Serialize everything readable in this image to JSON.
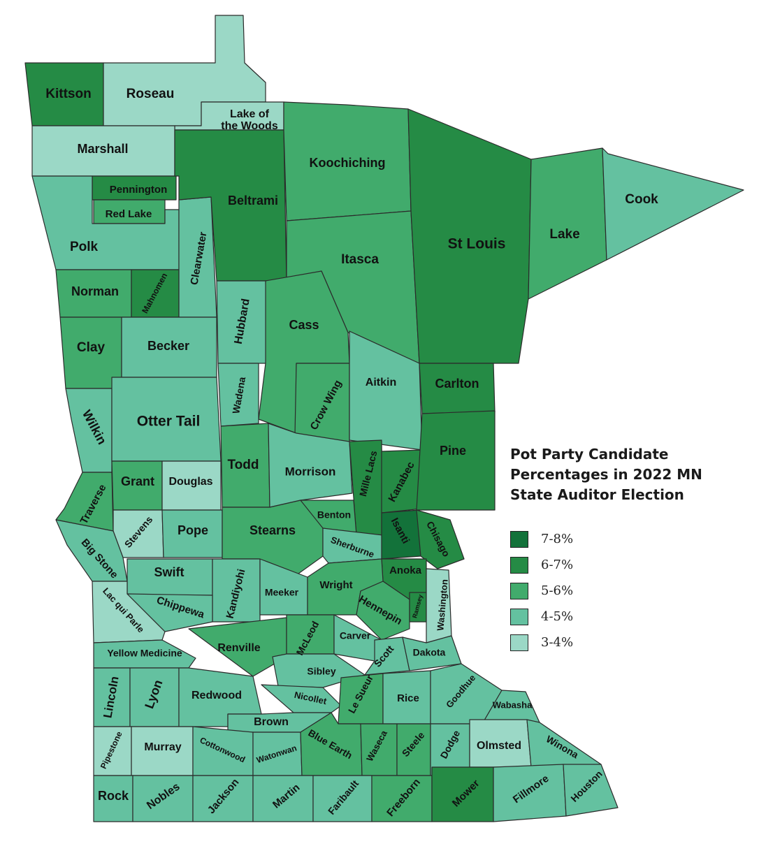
{
  "colors": {
    "7-8%": "#13723a",
    "6-7%": "#258b45",
    "5-6%": "#41ab6c",
    "4-5%": "#64c1a0",
    "3-4%": "#9bd8c6"
  },
  "legend": {
    "title": "Pot Party Candidate Percentages in 2022 MN State Auditor Election",
    "items": [
      {
        "label": "7-8%",
        "color": "#13723a"
      },
      {
        "label": "6-7%",
        "color": "#258b45"
      },
      {
        "label": "5-6%",
        "color": "#41ab6c"
      },
      {
        "label": "4-5%",
        "color": "#64c1a0"
      },
      {
        "label": "3-4%",
        "color": "#9bd8c6"
      }
    ]
  },
  "counties": [
    {
      "name": "Kittson",
      "range": "6-7%"
    },
    {
      "name": "Roseau",
      "range": "3-4%"
    },
    {
      "name": "Lake of the Woods",
      "range": "3-4%"
    },
    {
      "name": "Marshall",
      "range": "3-4%"
    },
    {
      "name": "Pennington",
      "range": "6-7%"
    },
    {
      "name": "Red Lake",
      "range": "5-6%"
    },
    {
      "name": "Polk",
      "range": "4-5%"
    },
    {
      "name": "Norman",
      "range": "5-6%"
    },
    {
      "name": "Mahnomen",
      "range": "6-7%"
    },
    {
      "name": "Clearwater",
      "range": "4-5%"
    },
    {
      "name": "Beltrami",
      "range": "6-7%"
    },
    {
      "name": "Koochiching",
      "range": "5-6%"
    },
    {
      "name": "Itasca",
      "range": "5-6%"
    },
    {
      "name": "St Louis",
      "range": "6-7%"
    },
    {
      "name": "Lake",
      "range": "5-6%"
    },
    {
      "name": "Cook",
      "range": "4-5%"
    },
    {
      "name": "Clay",
      "range": "5-6%"
    },
    {
      "name": "Becker",
      "range": "4-5%"
    },
    {
      "name": "Hubbard",
      "range": "4-5%"
    },
    {
      "name": "Cass",
      "range": "5-6%"
    },
    {
      "name": "Wadena",
      "range": "4-5%"
    },
    {
      "name": "Crow Wing",
      "range": "5-6%"
    },
    {
      "name": "Aitkin",
      "range": "4-5%"
    },
    {
      "name": "Carlton",
      "range": "6-7%"
    },
    {
      "name": "Wilkin",
      "range": "4-5%"
    },
    {
      "name": "Otter Tail",
      "range": "4-5%"
    },
    {
      "name": "Todd",
      "range": "5-6%"
    },
    {
      "name": "Morrison",
      "range": "4-5%"
    },
    {
      "name": "Mille Lacs",
      "range": "6-7%"
    },
    {
      "name": "Kanabec",
      "range": "6-7%"
    },
    {
      "name": "Pine",
      "range": "6-7%"
    },
    {
      "name": "Traverse",
      "range": "5-6%"
    },
    {
      "name": "Grant",
      "range": "5-6%"
    },
    {
      "name": "Douglas",
      "range": "3-4%"
    },
    {
      "name": "Stevens",
      "range": "3-4%"
    },
    {
      "name": "Pope",
      "range": "4-5%"
    },
    {
      "name": "Stearns",
      "range": "5-6%"
    },
    {
      "name": "Benton",
      "range": "5-6%"
    },
    {
      "name": "Sherburne",
      "range": "4-5%"
    },
    {
      "name": "Isanti",
      "range": "7-8%"
    },
    {
      "name": "Chisago",
      "range": "6-7%"
    },
    {
      "name": "Anoka",
      "range": "6-7%"
    },
    {
      "name": "Big Stone",
      "range": "4-5%"
    },
    {
      "name": "Swift",
      "range": "4-5%"
    },
    {
      "name": "Kandiyohi",
      "range": "4-5%"
    },
    {
      "name": "Meeker",
      "range": "4-5%"
    },
    {
      "name": "Wright",
      "range": "5-6%"
    },
    {
      "name": "Hennepin",
      "range": "5-6%"
    },
    {
      "name": "Ramsey",
      "range": "6-7%"
    },
    {
      "name": "Washington",
      "range": "3-4%"
    },
    {
      "name": "Lac qui Parle",
      "range": "3-4%"
    },
    {
      "name": "Chippewa",
      "range": "4-5%"
    },
    {
      "name": "Renville",
      "range": "5-6%"
    },
    {
      "name": "McLeod",
      "range": "5-6%"
    },
    {
      "name": "Carver",
      "range": "4-5%"
    },
    {
      "name": "Scott",
      "range": "4-5%"
    },
    {
      "name": "Dakota",
      "range": "4-5%"
    },
    {
      "name": "Yellow Medicine",
      "range": "4-5%"
    },
    {
      "name": "Sibley",
      "range": "4-5%"
    },
    {
      "name": "Lincoln",
      "range": "4-5%"
    },
    {
      "name": "Lyon",
      "range": "4-5%"
    },
    {
      "name": "Redwood",
      "range": "4-5%"
    },
    {
      "name": "Nicollet",
      "range": "4-5%"
    },
    {
      "name": "Le Sueur",
      "range": "5-6%"
    },
    {
      "name": "Rice",
      "range": "4-5%"
    },
    {
      "name": "Goodhue",
      "range": "4-5%"
    },
    {
      "name": "Wabasha",
      "range": "4-5%"
    },
    {
      "name": "Brown",
      "range": "4-5%"
    },
    {
      "name": "Pipestone",
      "range": "3-4%"
    },
    {
      "name": "Murray",
      "range": "3-4%"
    },
    {
      "name": "Cottonwood",
      "range": "4-5%"
    },
    {
      "name": "Watonwan",
      "range": "4-5%"
    },
    {
      "name": "Blue Earth",
      "range": "5-6%"
    },
    {
      "name": "Waseca",
      "range": "5-6%"
    },
    {
      "name": "Steele",
      "range": "5-6%"
    },
    {
      "name": "Dodge",
      "range": "4-5%"
    },
    {
      "name": "Olmsted",
      "range": "3-4%"
    },
    {
      "name": "Winona",
      "range": "4-5%"
    },
    {
      "name": "Rock",
      "range": "4-5%"
    },
    {
      "name": "Nobles",
      "range": "4-5%"
    },
    {
      "name": "Jackson",
      "range": "4-5%"
    },
    {
      "name": "Martin",
      "range": "4-5%"
    },
    {
      "name": "Faribault",
      "range": "4-5%"
    },
    {
      "name": "Freeborn",
      "range": "5-6%"
    },
    {
      "name": "Mower",
      "range": "6-7%"
    },
    {
      "name": "Fillmore",
      "range": "4-5%"
    },
    {
      "name": "Houston",
      "range": "4-5%"
    }
  ]
}
